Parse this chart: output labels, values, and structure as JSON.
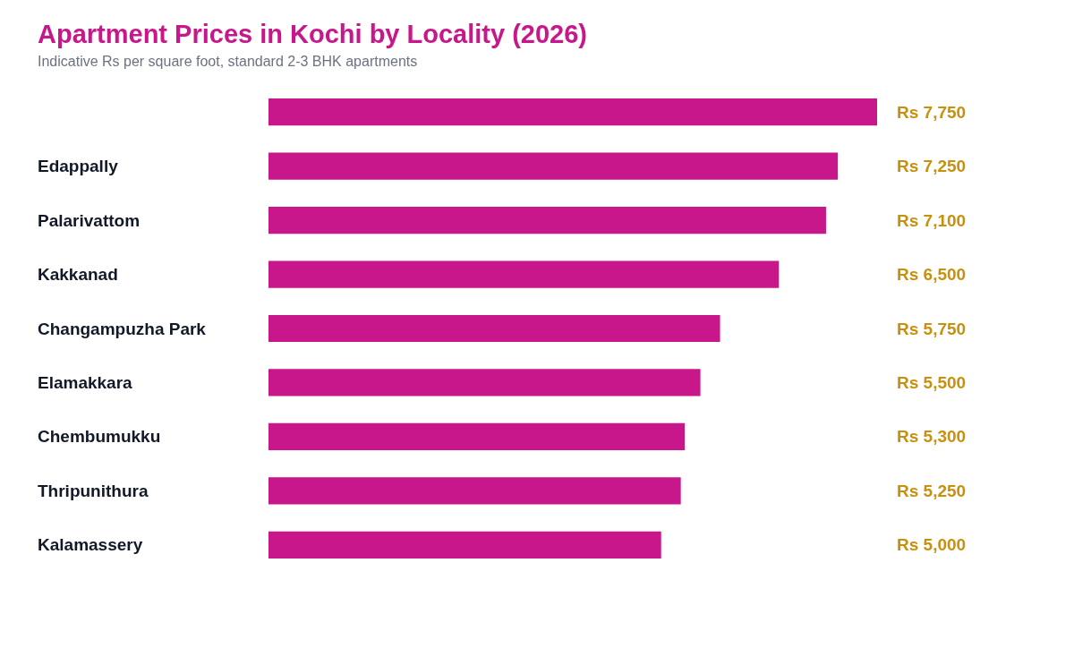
{
  "chart_data": {
    "type": "bar",
    "orientation": "horizontal",
    "title": "Apartment Prices in Kochi by Locality (2026)",
    "subtitle": "Indicative Rs per square foot, standard 2-3 BHK apartments",
    "categories": [
      null,
      "Edappally",
      "Palarivattom",
      "Kakkanad",
      "Changampuzha Park",
      "Elamakkara",
      "Chembumukku",
      "Thripunithura",
      "Kalamassery"
    ],
    "values": [
      7750,
      7250,
      7100,
      6500,
      5750,
      5500,
      5300,
      5250,
      5000
    ],
    "value_labels": [
      "Rs 7,750",
      "Rs 7,250",
      "Rs 7,100",
      "Rs 6,500",
      "Rs 5,750",
      "Rs 5,500",
      "Rs 5,300",
      "Rs 5,250",
      "Rs 5,000"
    ],
    "color": "#c8178a"
  }
}
